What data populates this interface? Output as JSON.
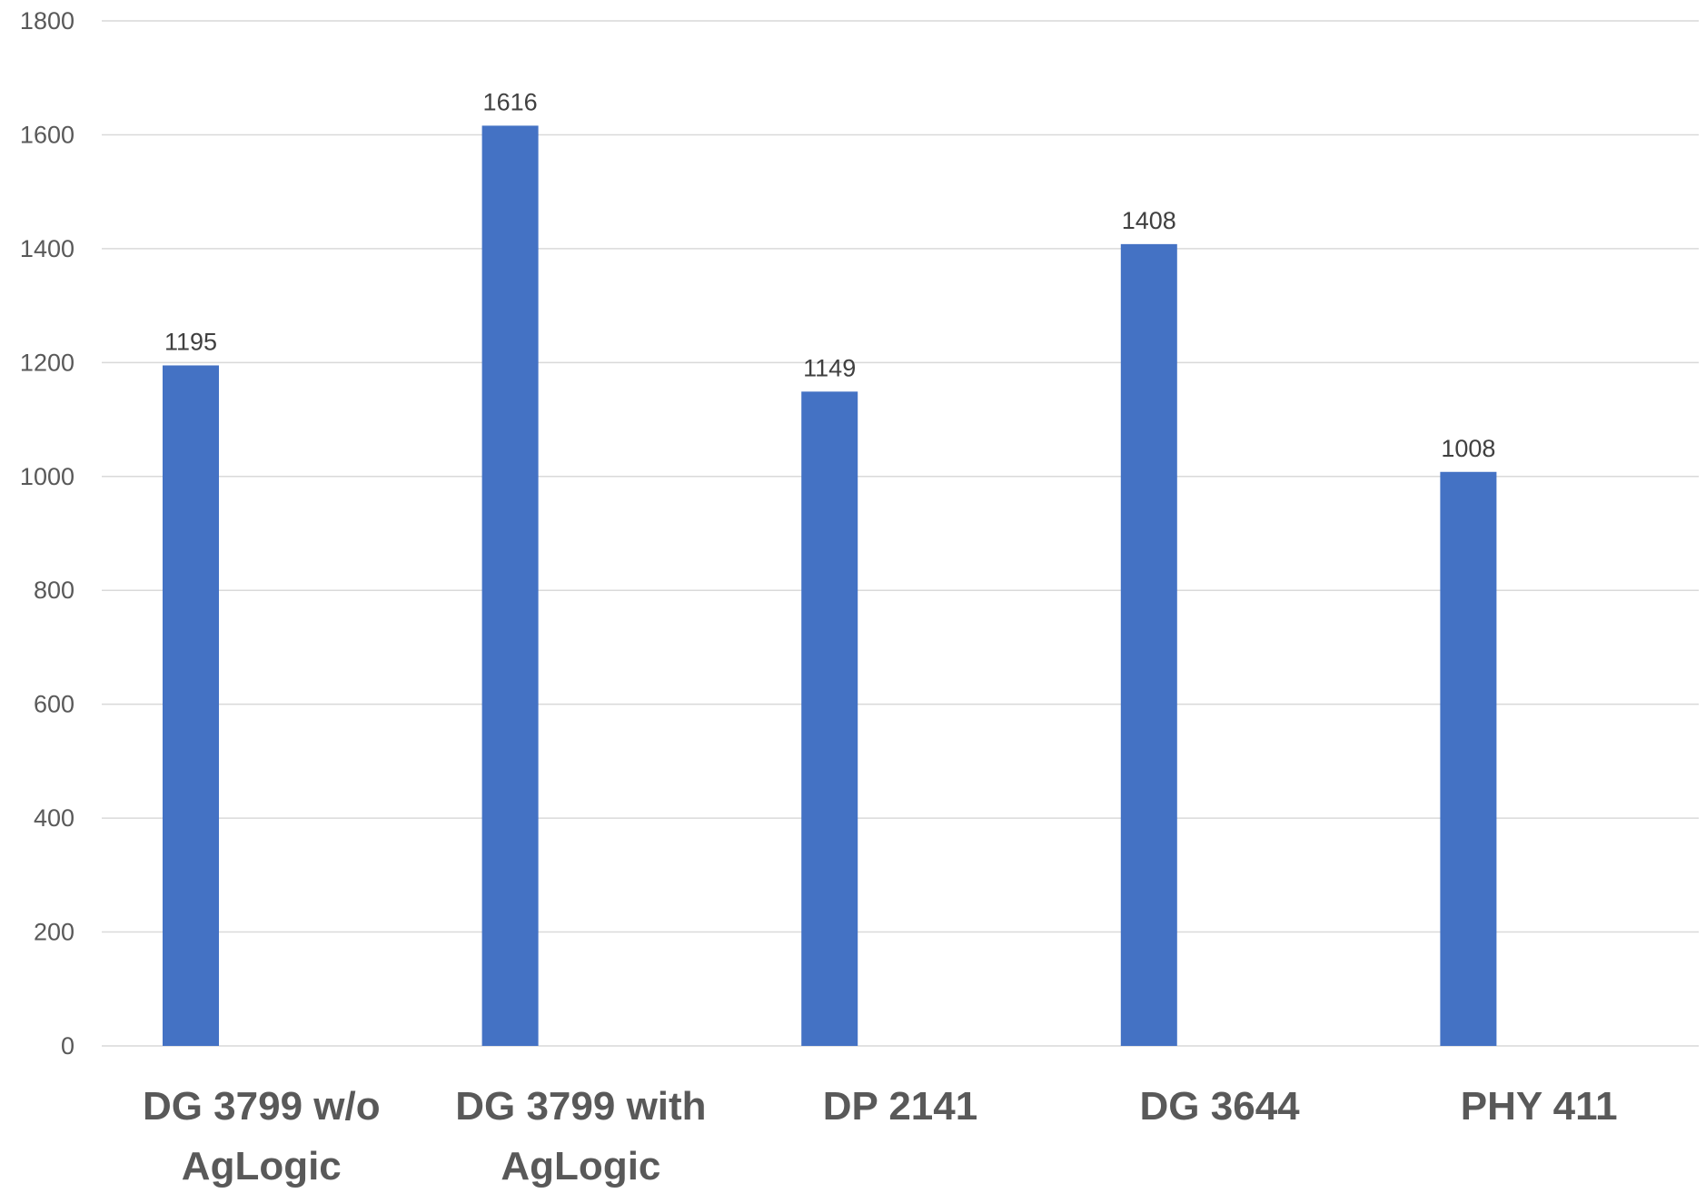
{
  "chart_data": {
    "type": "bar",
    "title": "",
    "xlabel": "",
    "ylabel": "",
    "categories": [
      [
        "DG 3799 w/o",
        "AgLogic"
      ],
      [
        "DG 3799 with",
        "AgLogic"
      ],
      [
        "DP 2141"
      ],
      [
        "DG 3644"
      ],
      [
        "PHY 411"
      ]
    ],
    "values": [
      1195,
      1616,
      1149,
      1408,
      1008
    ],
    "data_labels": [
      "1195",
      "1616",
      "1149",
      "1408",
      "1008"
    ],
    "ylim": [
      0,
      1800
    ],
    "yticks": [
      0,
      200,
      400,
      600,
      800,
      1000,
      1200,
      1400,
      1600,
      1800
    ],
    "grid": true,
    "legend": "none",
    "bar_color": "#4472C4"
  }
}
